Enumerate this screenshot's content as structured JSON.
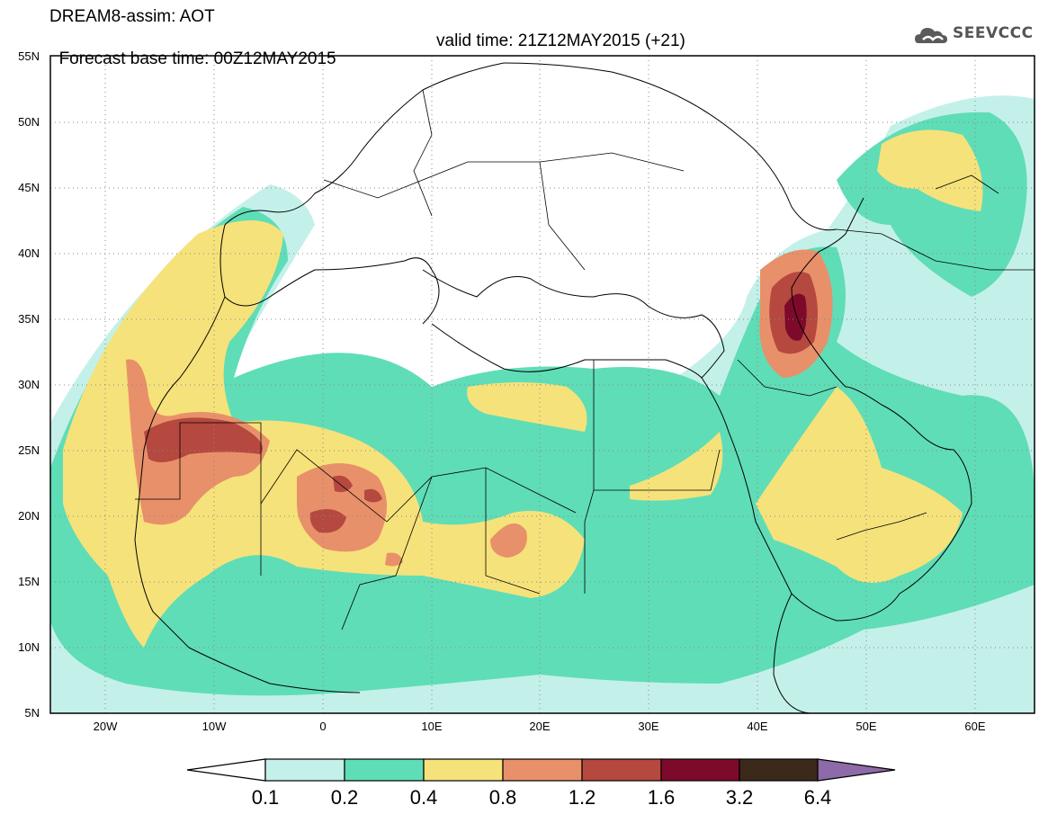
{
  "header": {
    "line1": "DREAM8-assim: AOT",
    "line2_base": "Forecast base time: 00Z12MAY2015",
    "line2_valid": "valid time: 21Z12MAY2015 (+21)"
  },
  "logo": {
    "text": "SEEVCCC",
    "icon": "cloud-icon"
  },
  "map": {
    "lat_range": [
      5,
      55
    ],
    "lon_range": [
      -25,
      65
    ],
    "lat_ticks": [
      "5N",
      "10N",
      "15N",
      "20N",
      "25N",
      "30N",
      "35N",
      "40N",
      "45N",
      "50N",
      "55N"
    ],
    "lon_ticks": [
      "20W",
      "10W",
      "0",
      "10E",
      "20E",
      "30E",
      "40E",
      "50E",
      "60E"
    ],
    "grid": "dotted"
  },
  "colorbar": {
    "levels": [
      "0.1",
      "0.2",
      "0.4",
      "0.8",
      "1.2",
      "1.6",
      "3.2",
      "6.4"
    ],
    "colors": [
      "#ffffff",
      "#c4f0ea",
      "#5fddb7",
      "#f6e27a",
      "#e8906a",
      "#b5483f",
      "#7d0a2a",
      "#3b2a1a",
      "#8d6aa8"
    ]
  },
  "chart_data": {
    "type": "heatmap",
    "title": "DREAM8-assim: AOT",
    "xlim": [
      -25,
      65
    ],
    "ylim": [
      5,
      55
    ],
    "levels": [
      0.1,
      0.2,
      0.4,
      0.8,
      1.2,
      1.6,
      3.2,
      6.4
    ]
  }
}
